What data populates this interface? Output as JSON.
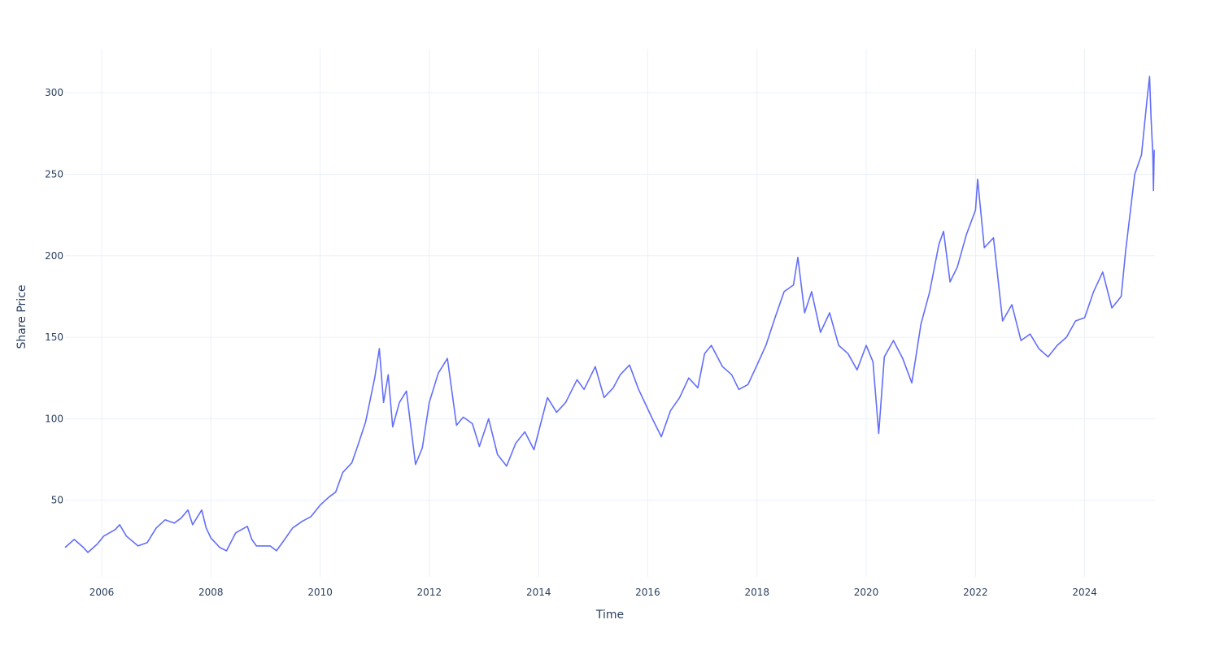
{
  "chart_data": {
    "type": "line",
    "title": "",
    "xlabel": "Time",
    "ylabel": "Share Price",
    "x_range": [
      "2005-05-01",
      "2025-04-15"
    ],
    "y_range": [
      3,
      327
    ],
    "grid": true,
    "legend": "none",
    "line_color": "#636efa",
    "x_ticks": [
      {
        "value": "2006-01-01",
        "label": "2006"
      },
      {
        "value": "2008-01-01",
        "label": "2008"
      },
      {
        "value": "2010-01-01",
        "label": "2010"
      },
      {
        "value": "2012-01-01",
        "label": "2012"
      },
      {
        "value": "2014-01-01",
        "label": "2014"
      },
      {
        "value": "2016-01-01",
        "label": "2016"
      },
      {
        "value": "2018-01-01",
        "label": "2018"
      },
      {
        "value": "2020-01-01",
        "label": "2020"
      },
      {
        "value": "2022-01-01",
        "label": "2022"
      },
      {
        "value": "2024-01-01",
        "label": "2024"
      }
    ],
    "y_ticks": [
      {
        "value": 50,
        "label": "50"
      },
      {
        "value": 100,
        "label": "100"
      },
      {
        "value": 150,
        "label": "150"
      },
      {
        "value": 200,
        "label": "200"
      },
      {
        "value": 250,
        "label": "250"
      },
      {
        "value": 300,
        "label": "300"
      }
    ],
    "series": [
      {
        "points": [
          [
            "2005-05-01",
            21
          ],
          [
            "2005-07-01",
            26
          ],
          [
            "2005-09-01",
            21
          ],
          [
            "2005-10-01",
            18
          ],
          [
            "2005-12-01",
            23
          ],
          [
            "2006-01-15",
            28
          ],
          [
            "2006-04-01",
            32
          ],
          [
            "2006-05-01",
            35
          ],
          [
            "2006-06-15",
            28
          ],
          [
            "2006-09-01",
            22
          ],
          [
            "2006-11-01",
            24
          ],
          [
            "2007-01-01",
            33
          ],
          [
            "2007-03-01",
            38
          ],
          [
            "2007-05-01",
            36
          ],
          [
            "2007-06-15",
            39
          ],
          [
            "2007-08-01",
            44
          ],
          [
            "2007-09-01",
            35
          ],
          [
            "2007-11-01",
            44
          ],
          [
            "2007-12-01",
            33
          ],
          [
            "2008-01-01",
            27
          ],
          [
            "2008-03-01",
            21
          ],
          [
            "2008-04-15",
            19
          ],
          [
            "2008-06-15",
            30
          ],
          [
            "2008-09-01",
            34
          ],
          [
            "2008-10-01",
            26
          ],
          [
            "2008-11-01",
            22
          ],
          [
            "2009-02-01",
            22
          ],
          [
            "2009-03-15",
            19
          ],
          [
            "2009-05-01",
            25
          ],
          [
            "2009-07-01",
            33
          ],
          [
            "2009-09-01",
            37
          ],
          [
            "2009-11-01",
            40
          ],
          [
            "2010-01-01",
            47
          ],
          [
            "2010-03-01",
            52
          ],
          [
            "2010-04-15",
            55
          ],
          [
            "2010-06-01",
            67
          ],
          [
            "2010-08-01",
            73
          ],
          [
            "2010-09-15",
            85
          ],
          [
            "2010-11-01",
            98
          ],
          [
            "2011-01-01",
            125
          ],
          [
            "2011-02-01",
            143
          ],
          [
            "2011-03-01",
            110
          ],
          [
            "2011-04-01",
            127
          ],
          [
            "2011-05-01",
            95
          ],
          [
            "2011-06-15",
            110
          ],
          [
            "2011-08-01",
            117
          ],
          [
            "2011-10-01",
            72
          ],
          [
            "2011-11-15",
            82
          ],
          [
            "2012-01-01",
            110
          ],
          [
            "2012-03-01",
            128
          ],
          [
            "2012-05-01",
            137
          ],
          [
            "2012-07-01",
            96
          ],
          [
            "2012-08-15",
            101
          ],
          [
            "2012-10-15",
            97
          ],
          [
            "2012-12-01",
            83
          ],
          [
            "2013-02-01",
            100
          ],
          [
            "2013-04-01",
            78
          ],
          [
            "2013-06-01",
            71
          ],
          [
            "2013-08-01",
            85
          ],
          [
            "2013-10-01",
            92
          ],
          [
            "2013-12-01",
            81
          ],
          [
            "2014-03-01",
            113
          ],
          [
            "2014-05-01",
            104
          ],
          [
            "2014-07-01",
            110
          ],
          [
            "2014-09-15",
            124
          ],
          [
            "2014-11-01",
            118
          ],
          [
            "2015-01-15",
            132
          ],
          [
            "2015-03-15",
            113
          ],
          [
            "2015-05-15",
            119
          ],
          [
            "2015-07-01",
            127
          ],
          [
            "2015-09-01",
            133
          ],
          [
            "2015-11-01",
            118
          ],
          [
            "2016-02-01",
            100
          ],
          [
            "2016-04-01",
            89
          ],
          [
            "2016-06-01",
            105
          ],
          [
            "2016-08-01",
            113
          ],
          [
            "2016-10-01",
            125
          ],
          [
            "2016-12-01",
            119
          ],
          [
            "2017-01-15",
            140
          ],
          [
            "2017-03-01",
            145
          ],
          [
            "2017-05-15",
            132
          ],
          [
            "2017-07-15",
            127
          ],
          [
            "2017-09-01",
            118
          ],
          [
            "2017-11-01",
            121
          ],
          [
            "2018-01-01",
            133
          ],
          [
            "2018-03-01",
            145
          ],
          [
            "2018-05-01",
            162
          ],
          [
            "2018-07-01",
            178
          ],
          [
            "2018-09-01",
            182
          ],
          [
            "2018-10-01",
            199
          ],
          [
            "2018-11-15",
            165
          ],
          [
            "2019-01-01",
            178
          ],
          [
            "2019-03-01",
            153
          ],
          [
            "2019-05-01",
            165
          ],
          [
            "2019-07-01",
            145
          ],
          [
            "2019-09-01",
            140
          ],
          [
            "2019-11-01",
            130
          ],
          [
            "2020-01-01",
            145
          ],
          [
            "2020-02-15",
            135
          ],
          [
            "2020-03-25",
            91
          ],
          [
            "2020-05-01",
            138
          ],
          [
            "2020-07-01",
            148
          ],
          [
            "2020-09-01",
            137
          ],
          [
            "2020-11-01",
            122
          ],
          [
            "2021-01-01",
            158
          ],
          [
            "2021-03-01",
            178
          ],
          [
            "2021-05-01",
            207
          ],
          [
            "2021-06-01",
            215
          ],
          [
            "2021-07-15",
            184
          ],
          [
            "2021-09-01",
            193
          ],
          [
            "2021-11-01",
            213
          ],
          [
            "2022-01-01",
            228
          ],
          [
            "2022-01-15",
            247
          ],
          [
            "2022-03-01",
            205
          ],
          [
            "2022-05-01",
            211
          ],
          [
            "2022-07-01",
            160
          ],
          [
            "2022-09-01",
            170
          ],
          [
            "2022-11-01",
            148
          ],
          [
            "2023-01-01",
            152
          ],
          [
            "2023-03-01",
            143
          ],
          [
            "2023-05-01",
            138
          ],
          [
            "2023-07-01",
            145
          ],
          [
            "2023-09-01",
            150
          ],
          [
            "2023-11-01",
            160
          ],
          [
            "2024-01-01",
            162
          ],
          [
            "2024-03-01",
            178
          ],
          [
            "2024-05-01",
            190
          ],
          [
            "2024-07-01",
            168
          ],
          [
            "2024-09-01",
            175
          ],
          [
            "2024-10-01",
            203
          ],
          [
            "2024-12-01",
            250
          ],
          [
            "2025-01-15",
            262
          ],
          [
            "2025-02-20",
            295
          ],
          [
            "2025-03-10",
            310
          ],
          [
            "2025-03-20",
            285
          ],
          [
            "2025-04-01",
            262
          ],
          [
            "2025-04-05",
            240
          ],
          [
            "2025-04-10",
            265
          ]
        ]
      }
    ]
  }
}
